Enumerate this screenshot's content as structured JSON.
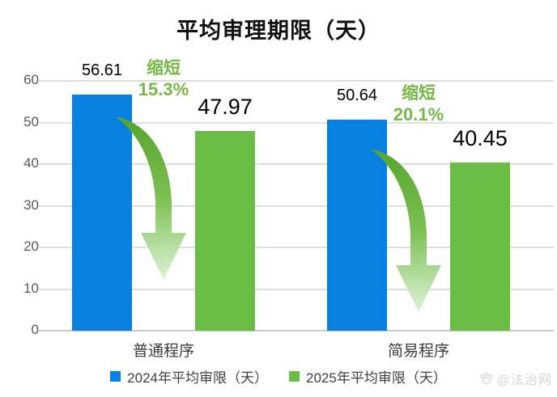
{
  "title": "平均审理期限（天）",
  "watermark": {
    "text": "@法治网",
    "icon": "paw-icon"
  },
  "chart_data": {
    "type": "bar",
    "title": "平均审理期限（天）",
    "categories": [
      "普通程序",
      "简易程序"
    ],
    "series": [
      {
        "name": "2024年平均审限（天）",
        "color": "#0780e0",
        "values": [
          56.61,
          50.64
        ]
      },
      {
        "name": "2025年平均审限（天）",
        "color": "#6cbd45",
        "values": [
          47.97,
          40.45
        ]
      }
    ],
    "annotations": [
      {
        "label": "缩短",
        "pct": "15.3%"
      },
      {
        "label": "缩短",
        "pct": "20.1%"
      }
    ],
    "xlabel": "",
    "ylabel": "",
    "ylim": [
      0,
      60
    ],
    "yticks": [
      0,
      10,
      20,
      30,
      40,
      50,
      60
    ],
    "grid": true,
    "legend_position": "bottom",
    "colors": {
      "annotation_green": "#76b843",
      "gridline": "#dedede",
      "axis_line": "#c9c9c9",
      "tick_text": "#595959",
      "category_text": "#3d3d3d"
    }
  }
}
